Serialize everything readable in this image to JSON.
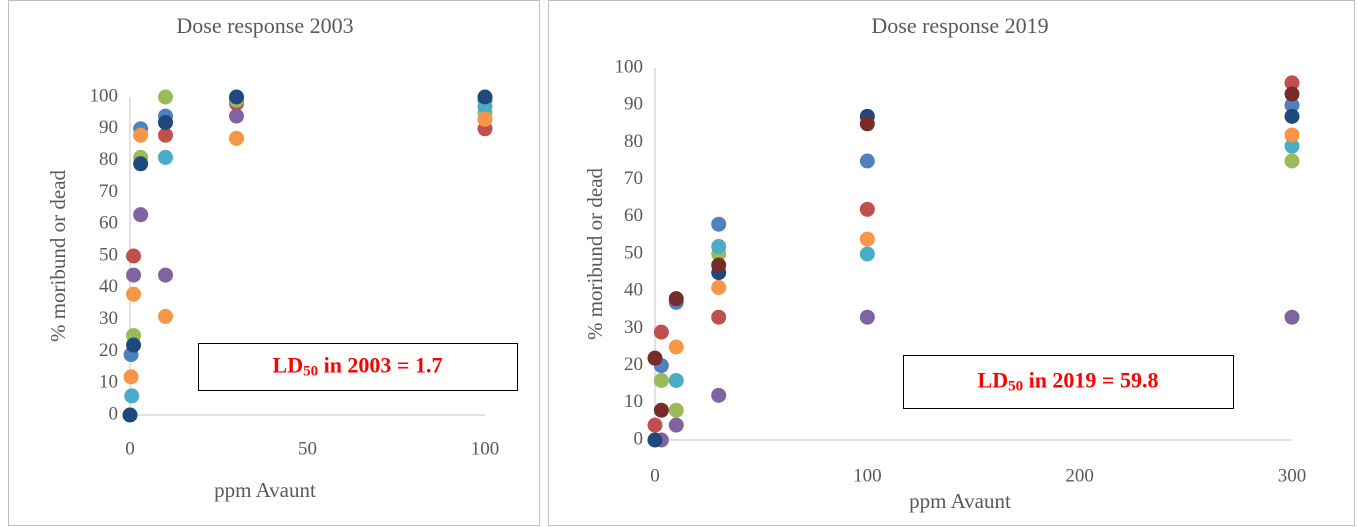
{
  "chart_data": [
    {
      "type": "scatter",
      "title": "Dose response 2003",
      "x_label": "ppm Avaunt",
      "y_label": "% moribund or dead",
      "xlim": [
        0,
        100
      ],
      "xticks": [
        0,
        50,
        100
      ],
      "ylim": [
        0,
        100
      ],
      "yticks": [
        0,
        10,
        20,
        30,
        40,
        50,
        60,
        70,
        80,
        90,
        100
      ],
      "grid": false,
      "annotation": {
        "prefix": "LD",
        "subscript": "50",
        "suffix": " in 2003 =  1.7"
      },
      "series": [
        {
          "color": "#4f81bd",
          "x": [
            0,
            0.3,
            3,
            10,
            30,
            100
          ],
          "values": [
            0,
            19,
            90,
            94,
            99,
            99
          ]
        },
        {
          "color": "#c0504d",
          "x": [
            1,
            10,
            30,
            100
          ],
          "values": [
            50,
            88,
            98,
            90
          ]
        },
        {
          "color": "#9bbb59",
          "x": [
            1,
            3,
            10,
            30,
            100
          ],
          "values": [
            25,
            81,
            100,
            99,
            95
          ]
        },
        {
          "color": "#8064a2",
          "x": [
            1,
            3,
            10,
            30
          ],
          "values": [
            44,
            63,
            44,
            94
          ]
        },
        {
          "color": "#4bacc6",
          "x": [
            0.5,
            10,
            100
          ],
          "values": [
            6,
            81,
            97
          ]
        },
        {
          "color": "#f79646",
          "x": [
            0.3,
            1,
            3,
            10,
            30,
            100
          ],
          "values": [
            12,
            38,
            88,
            31,
            87,
            93
          ]
        },
        {
          "color": "#1f497d",
          "x": [
            0,
            1,
            3,
            10,
            30,
            100
          ],
          "values": [
            0,
            22,
            79,
            92,
            100,
            100
          ]
        }
      ]
    },
    {
      "type": "scatter",
      "title": "Dose response 2019",
      "x_label": "ppm Avaunt",
      "y_label": "% moribund or dead",
      "xlim": [
        0,
        300
      ],
      "xticks": [
        0,
        100,
        200,
        300
      ],
      "ylim": [
        0,
        100
      ],
      "yticks": [
        0,
        10,
        20,
        30,
        40,
        50,
        60,
        70,
        80,
        90,
        100
      ],
      "grid": false,
      "annotation": {
        "prefix": "LD",
        "subscript": "50",
        "suffix": " in 2019 =  59.8"
      },
      "series": [
        {
          "color": "#4f81bd",
          "x": [
            3,
            10,
            30,
            100,
            300
          ],
          "values": [
            20,
            37,
            58,
            75,
            90
          ]
        },
        {
          "color": "#c0504d",
          "x": [
            0,
            3,
            30,
            100,
            300
          ],
          "values": [
            4,
            29,
            33,
            62,
            96
          ]
        },
        {
          "color": "#9bbb59",
          "x": [
            3,
            10,
            30,
            300
          ],
          "values": [
            16,
            8,
            50,
            75
          ]
        },
        {
          "color": "#8064a2",
          "x": [
            3,
            10,
            30,
            100,
            300
          ],
          "values": [
            0,
            4,
            12,
            33,
            33
          ]
        },
        {
          "color": "#4bacc6",
          "x": [
            10,
            30,
            100,
            300
          ],
          "values": [
            16,
            52,
            50,
            79
          ]
        },
        {
          "color": "#f79646",
          "x": [
            0,
            10,
            30,
            100,
            300
          ],
          "values": [
            0,
            25,
            41,
            54,
            82
          ]
        },
        {
          "color": "#1f497d",
          "x": [
            0,
            30,
            100,
            300
          ],
          "values": [
            0,
            45,
            87,
            87
          ]
        },
        {
          "color": "#772c2a",
          "x": [
            0,
            3,
            10,
            30,
            100,
            300
          ],
          "values": [
            22,
            8,
            38,
            47,
            85,
            93
          ]
        }
      ]
    }
  ]
}
